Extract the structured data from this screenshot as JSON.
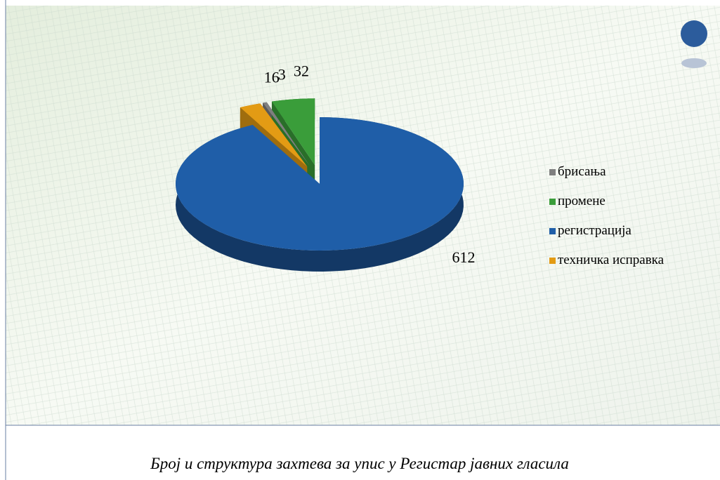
{
  "chart_data": {
    "type": "pie",
    "title": "Број и структура захтева за упис у Регистар јавних гласила",
    "categories": [
      "брисања",
      "промене",
      "регистрација",
      "техничка исправка"
    ],
    "values": [
      3,
      32,
      612,
      16
    ],
    "colors": [
      "#7f7f7f",
      "#3a9d3a",
      "#1f5ea8",
      "#e39b14"
    ],
    "legend": "right"
  }
}
